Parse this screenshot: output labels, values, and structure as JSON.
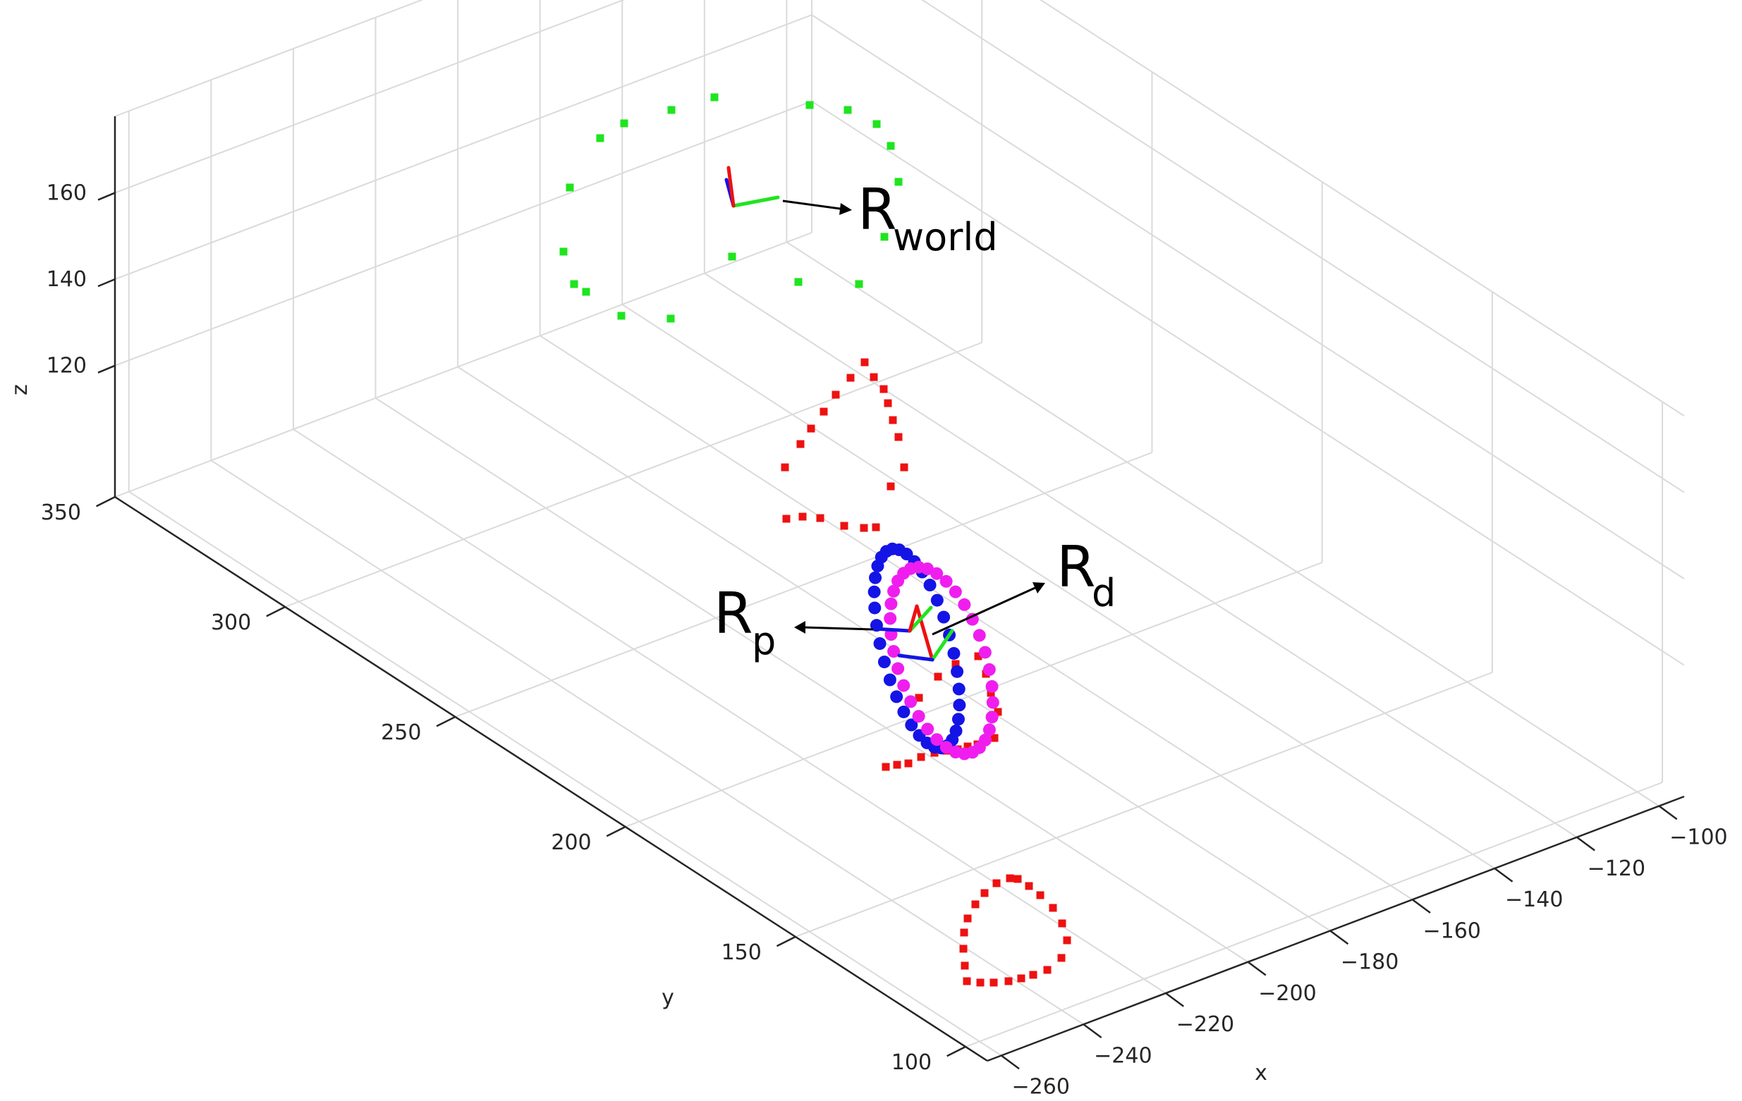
{
  "chart_data": {
    "type": "scatter",
    "title": "",
    "xlabel": "x",
    "ylabel": "y",
    "zlabel": "z",
    "x_ticks": [
      "−260",
      "−240",
      "−220",
      "−200",
      "−180",
      "−160",
      "−140",
      "−120",
      "−100"
    ],
    "y_ticks": [
      "100",
      "150",
      "200",
      "250",
      "300",
      "350"
    ],
    "z_ticks": [
      "120",
      "140",
      "160"
    ],
    "grid": true,
    "colors": {
      "green": "#1ee51e",
      "red": "#ee1111",
      "blue": "#1414e6",
      "magenta": "#ef1eef",
      "grid": "#dadada",
      "axis": "#262626"
    },
    "annotations": [
      {
        "main": "R",
        "sub": "world"
      },
      {
        "main": "R",
        "sub": "d"
      },
      {
        "main": "R",
        "sub": "p"
      }
    ]
  }
}
